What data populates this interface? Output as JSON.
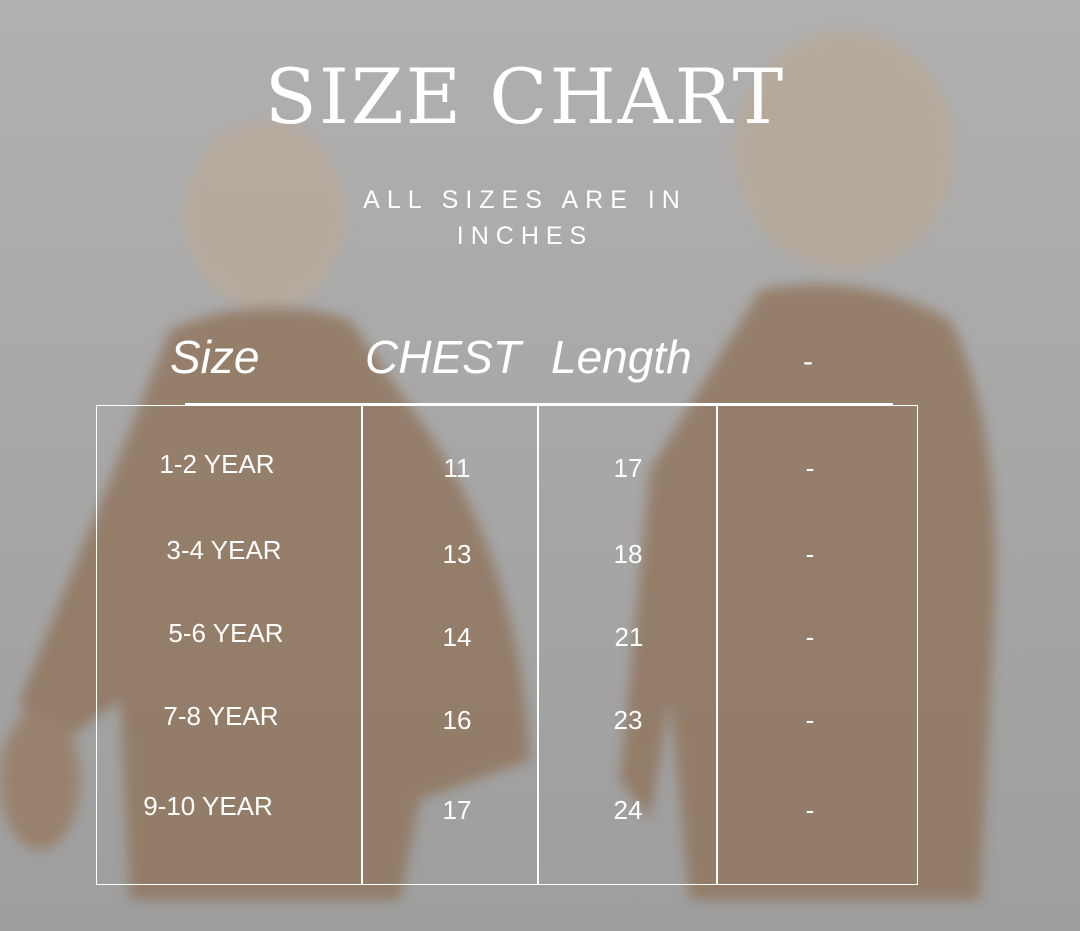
{
  "title": "SIZE CHART",
  "subtitle_line1": "ALL SIZES ARE IN",
  "subtitle_line2": "INCHES",
  "headers": [
    "Size",
    "CHEST",
    "Length",
    "-"
  ],
  "rows": [
    [
      "1-2 YEAR",
      "11",
      "17",
      "-"
    ],
    [
      "3-4 YEAR",
      "13",
      "18",
      "-"
    ],
    [
      "5-6 YEAR",
      "14",
      "21",
      "-"
    ],
    [
      "7-8 YEAR",
      "16",
      "23",
      "-"
    ],
    [
      "9-10 YEAR",
      "17",
      "24",
      "-"
    ]
  ],
  "colors": {
    "background": "#a9a9a9",
    "garment": "#8a6a4c",
    "text": "#ffffff"
  }
}
